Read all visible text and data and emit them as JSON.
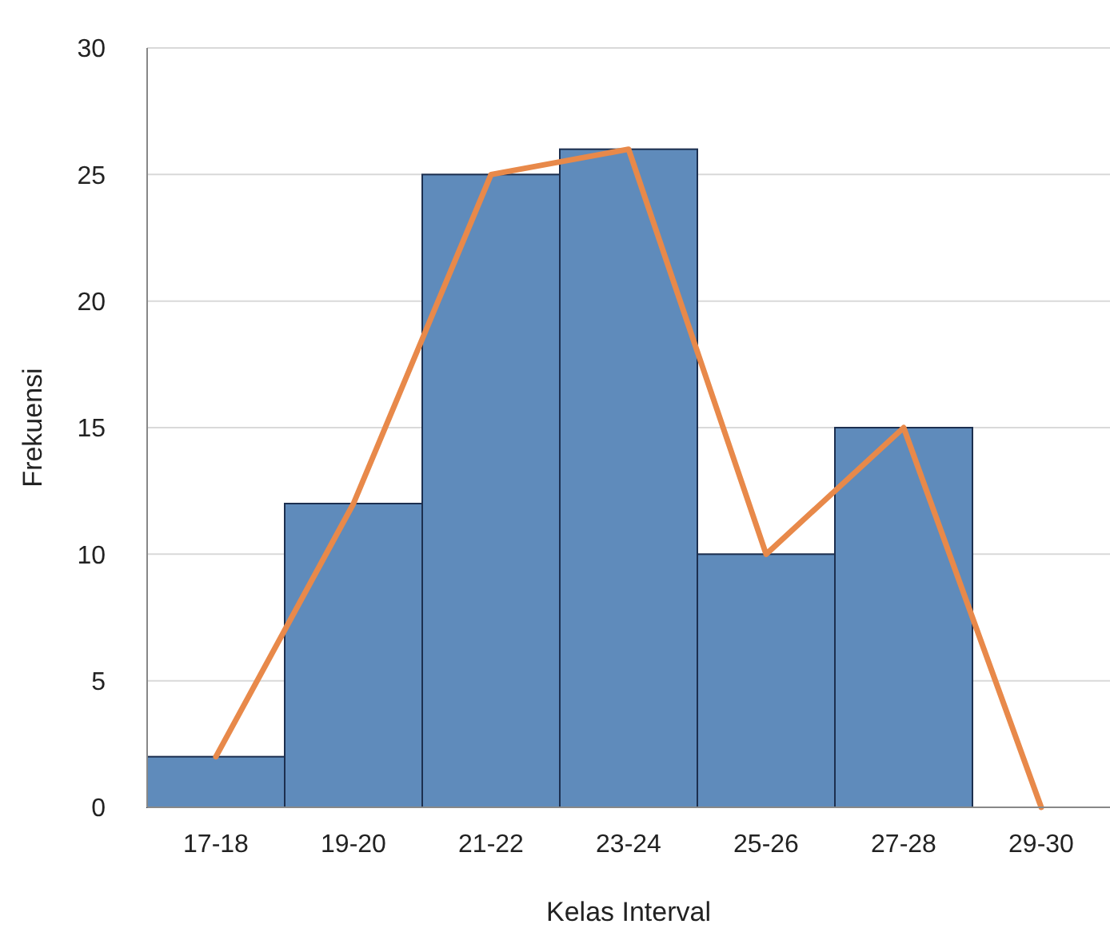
{
  "chart_data": {
    "type": "bar",
    "xlabel": "Kelas Interval",
    "ylabel": "Frekuensi",
    "categories": [
      "17-18",
      "19-20",
      "21-22",
      "23-24",
      "25-26",
      "27-28",
      "29-30"
    ],
    "series": [
      {
        "color": "#5f8bbb",
        "values": [
          2,
          12,
          25,
          26,
          10,
          15,
          0
        ]
      },
      {
        "type": "line",
        "color": "#e8894a",
        "values": [
          2,
          12,
          25,
          26,
          10,
          15,
          0
        ]
      }
    ],
    "ylim": [
      0,
      30
    ],
    "yticks": [
      0,
      5,
      10,
      15,
      20,
      25,
      30
    ],
    "grid": "y",
    "marker": "none",
    "line_style": "solid"
  }
}
